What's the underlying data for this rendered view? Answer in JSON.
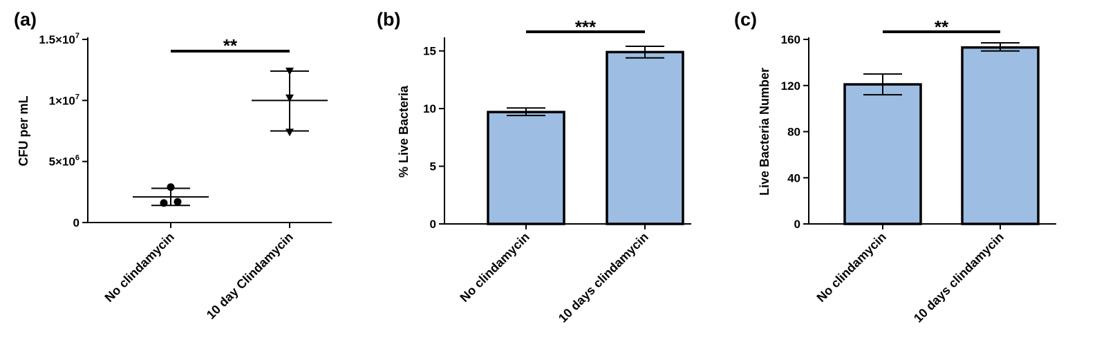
{
  "chart_data": [
    {
      "id": "a",
      "panel_label": "(a)",
      "type": "scatter",
      "ylabel": "CFU per mL",
      "ylim": [
        0,
        15000000
      ],
      "yticks": [
        {
          "value": 0,
          "base": "0",
          "exp": ""
        },
        {
          "value": 5000000,
          "base": "5×10",
          "exp": "6"
        },
        {
          "value": 10000000,
          "base": "1×10",
          "exp": "7"
        },
        {
          "value": 15000000,
          "base": "1.5×10",
          "exp": "7"
        }
      ],
      "categories": [
        "No clindamycin",
        "10 day Clindamycin"
      ],
      "series": [
        {
          "name": "No clindamycin",
          "marker": "circle",
          "points": [
            2900000,
            1600000,
            1700000
          ],
          "mean": 2100000,
          "sd_low": 1400000,
          "sd_high": 2800000
        },
        {
          "name": "10 day Clindamycin",
          "marker": "triangle-down",
          "points": [
            12400000,
            10200000,
            7400000
          ],
          "mean": 10000000,
          "sd_low": 7500000,
          "sd_high": 12400000
        }
      ],
      "significance": "**"
    },
    {
      "id": "b",
      "panel_label": "(b)",
      "type": "bar",
      "ylabel": "% Live Bacteria",
      "ylim": [
        0,
        16
      ],
      "yticks": [
        0,
        5,
        10,
        15
      ],
      "categories": [
        "No clindamycin",
        "10 days clindamycin"
      ],
      "values": [
        9.7,
        14.9
      ],
      "err_low": [
        9.4,
        14.4
      ],
      "err_high": [
        10.05,
        15.4
      ],
      "bar_color": "#9dbde3",
      "significance": "***"
    },
    {
      "id": "c",
      "panel_label": "(c)",
      "type": "bar",
      "ylabel": "Live Bacteria Number",
      "ylim": [
        0,
        160
      ],
      "yticks": [
        0,
        40,
        80,
        120,
        160
      ],
      "categories": [
        "No clindamycin",
        "10 days clindamycin"
      ],
      "values": [
        121,
        153
      ],
      "err_low": [
        112,
        150
      ],
      "err_high": [
        130,
        157
      ],
      "bar_color": "#9dbde3",
      "significance": "**"
    }
  ]
}
